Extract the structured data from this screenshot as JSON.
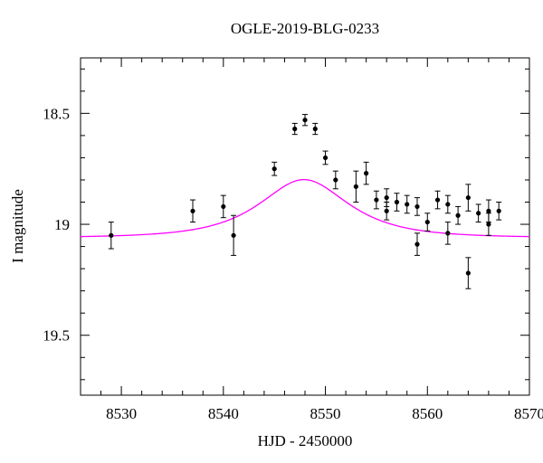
{
  "chart_data": {
    "type": "scatter",
    "title": "OGLE-2019-BLG-0233",
    "xlabel": "HJD - 2450000",
    "ylabel": "I magnitude",
    "xlim": [
      8526,
      8570
    ],
    "ylim": [
      19.77,
      18.25
    ],
    "y_inverted": true,
    "x_ticks": [
      8530,
      8540,
      8550,
      8560,
      8570
    ],
    "y_ticks": [
      18.5,
      19,
      19.5
    ],
    "y_tick_labels": [
      "18.5",
      "19",
      "19.5"
    ],
    "grid": false,
    "series": [
      {
        "kind": "points_with_errorbars",
        "color": "#000000",
        "points": [
          {
            "x": 8529.0,
            "y": 19.05,
            "err": 0.06
          },
          {
            "x": 8537.0,
            "y": 18.94,
            "err": 0.05
          },
          {
            "x": 8540.0,
            "y": 18.92,
            "err": 0.05
          },
          {
            "x": 8541.0,
            "y": 19.05,
            "err": 0.09
          },
          {
            "x": 8545.0,
            "y": 18.75,
            "err": 0.03
          },
          {
            "x": 8547.0,
            "y": 18.57,
            "err": 0.025
          },
          {
            "x": 8548.0,
            "y": 18.53,
            "err": 0.025
          },
          {
            "x": 8549.0,
            "y": 18.57,
            "err": 0.025
          },
          {
            "x": 8550.0,
            "y": 18.7,
            "err": 0.03
          },
          {
            "x": 8551.0,
            "y": 18.8,
            "err": 0.04
          },
          {
            "x": 8553.0,
            "y": 18.83,
            "err": 0.07
          },
          {
            "x": 8554.0,
            "y": 18.77,
            "err": 0.05
          },
          {
            "x": 8555.0,
            "y": 18.89,
            "err": 0.04
          },
          {
            "x": 8556.0,
            "y": 18.88,
            "err": 0.04
          },
          {
            "x": 8556.0,
            "y": 18.94,
            "err": 0.04
          },
          {
            "x": 8557.0,
            "y": 18.9,
            "err": 0.04
          },
          {
            "x": 8558.0,
            "y": 18.91,
            "err": 0.04
          },
          {
            "x": 8559.0,
            "y": 18.92,
            "err": 0.04
          },
          {
            "x": 8559.0,
            "y": 19.09,
            "err": 0.05
          },
          {
            "x": 8560.0,
            "y": 18.99,
            "err": 0.04
          },
          {
            "x": 8561.0,
            "y": 18.89,
            "err": 0.04
          },
          {
            "x": 8562.0,
            "y": 18.91,
            "err": 0.04
          },
          {
            "x": 8562.0,
            "y": 19.04,
            "err": 0.05
          },
          {
            "x": 8563.0,
            "y": 18.96,
            "err": 0.04
          },
          {
            "x": 8564.0,
            "y": 18.88,
            "err": 0.06
          },
          {
            "x": 8564.0,
            "y": 19.22,
            "err": 0.07
          },
          {
            "x": 8565.0,
            "y": 18.95,
            "err": 0.04
          },
          {
            "x": 8566.0,
            "y": 18.94,
            "err": 0.05
          },
          {
            "x": 8566.0,
            "y": 19.0,
            "err": 0.05
          },
          {
            "x": 8567.0,
            "y": 18.94,
            "err": 0.04
          }
        ]
      },
      {
        "kind": "model_curve",
        "color": "#ff00ff",
        "model": {
          "t0": 8547.9,
          "tE": 6.2,
          "u0": 0.79,
          "fs": 0.5,
          "baseline": 19.06
        }
      }
    ]
  }
}
